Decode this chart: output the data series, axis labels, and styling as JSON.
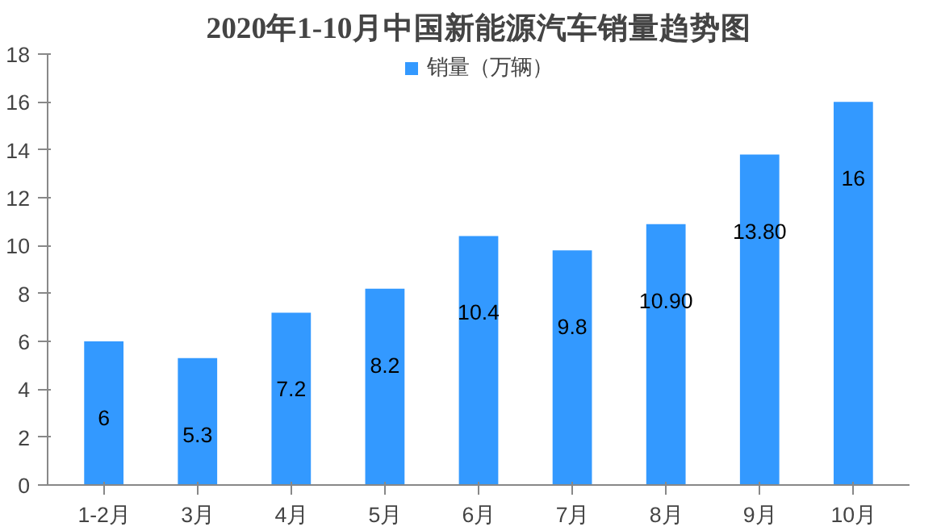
{
  "chart_data": {
    "type": "bar",
    "title": "2020年1-10月中国新能源汽车销量趋势图",
    "categories": [
      "1-2月",
      "3月",
      "4月",
      "5月",
      "6月",
      "7月",
      "8月",
      "9月",
      "10月"
    ],
    "series": [
      {
        "name": "销量（万辆）",
        "color": "#3399ff",
        "values": [
          6,
          5.3,
          7.2,
          8.2,
          10.4,
          9.8,
          10.9,
          13.8,
          16
        ],
        "value_labels": [
          "6",
          "5.3",
          "7.2",
          "8.2",
          "10.4",
          "9.8",
          "10.90",
          "13.80",
          "16"
        ]
      }
    ],
    "ylim": [
      0,
      18
    ],
    "yticks": [
      0,
      2,
      4,
      6,
      8,
      10,
      12,
      14,
      16,
      18
    ],
    "grid": false,
    "legend": "top"
  }
}
